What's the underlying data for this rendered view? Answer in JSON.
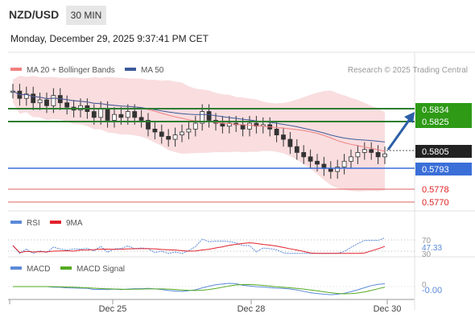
{
  "header": {
    "symbol": "NZD/USD",
    "timeframe": "30 MIN",
    "datetime": "Monday, December 29, 2025 9:37:41 PM CET"
  },
  "colors": {
    "price_line_color": "#2e7d32",
    "support_line_color": "#3a6fd8",
    "red_level_color": "#e06060",
    "band_fill": "#f8d7d9",
    "ma20_color": "#f08080",
    "ma50_color": "#3c5a9a",
    "rsi_color": "#5b8ad8",
    "rsi_ma_color": "#e0202a",
    "macd_color": "#5b8ad8",
    "macd_signal_color": "#55aa22",
    "arrow_color": "#2d5fa8"
  },
  "chart_data": [
    {
      "type": "candlestick",
      "legend": [
        "MA 20 + Bollinger Bands",
        "MA 50"
      ],
      "credit": "Research © 2025 Trading Central",
      "x_ticks": [
        "Dec 25",
        "Dec 28",
        "Dec 30"
      ],
      "levels": [
        {
          "value": "0.5834",
          "style": "green-box"
        },
        {
          "value": "0.5825",
          "style": "green-box"
        },
        {
          "value": "0.5805",
          "style": "dark-box"
        },
        {
          "value": "0.5793",
          "style": "blue-box"
        },
        {
          "value": "0.5778",
          "style": "red-text"
        },
        {
          "value": "0.5770",
          "style": "red-text"
        }
      ],
      "close_series": [
        0.5848,
        0.5843,
        0.5846,
        0.584,
        0.5842,
        0.5838,
        0.5845,
        0.584,
        0.5837,
        0.5835,
        0.5838,
        0.5834,
        0.583,
        0.5836,
        0.5828,
        0.5832,
        0.583,
        0.5834,
        0.583,
        0.5828,
        0.5822,
        0.582,
        0.5817,
        0.5815,
        0.5818,
        0.582,
        0.5822,
        0.5826,
        0.5834,
        0.5828,
        0.5826,
        0.5824,
        0.5826,
        0.5825,
        0.5822,
        0.5826,
        0.5824,
        0.5825,
        0.5822,
        0.5818,
        0.5815,
        0.581,
        0.5806,
        0.5803,
        0.58,
        0.5798,
        0.5795,
        0.5793,
        0.5796,
        0.58,
        0.5803,
        0.5806,
        0.5808,
        0.5806,
        0.5803,
        0.5805
      ]
    },
    {
      "type": "line",
      "name": "RSI",
      "legend": [
        "RSI",
        "9MA"
      ],
      "levels": [
        "70",
        "47.33",
        "30"
      ],
      "value": 47.33
    },
    {
      "type": "line",
      "name": "MACD",
      "legend": [
        "MACD",
        "MACD Signal"
      ],
      "levels": [
        "0",
        "-0.00"
      ],
      "value": -0.0
    }
  ]
}
